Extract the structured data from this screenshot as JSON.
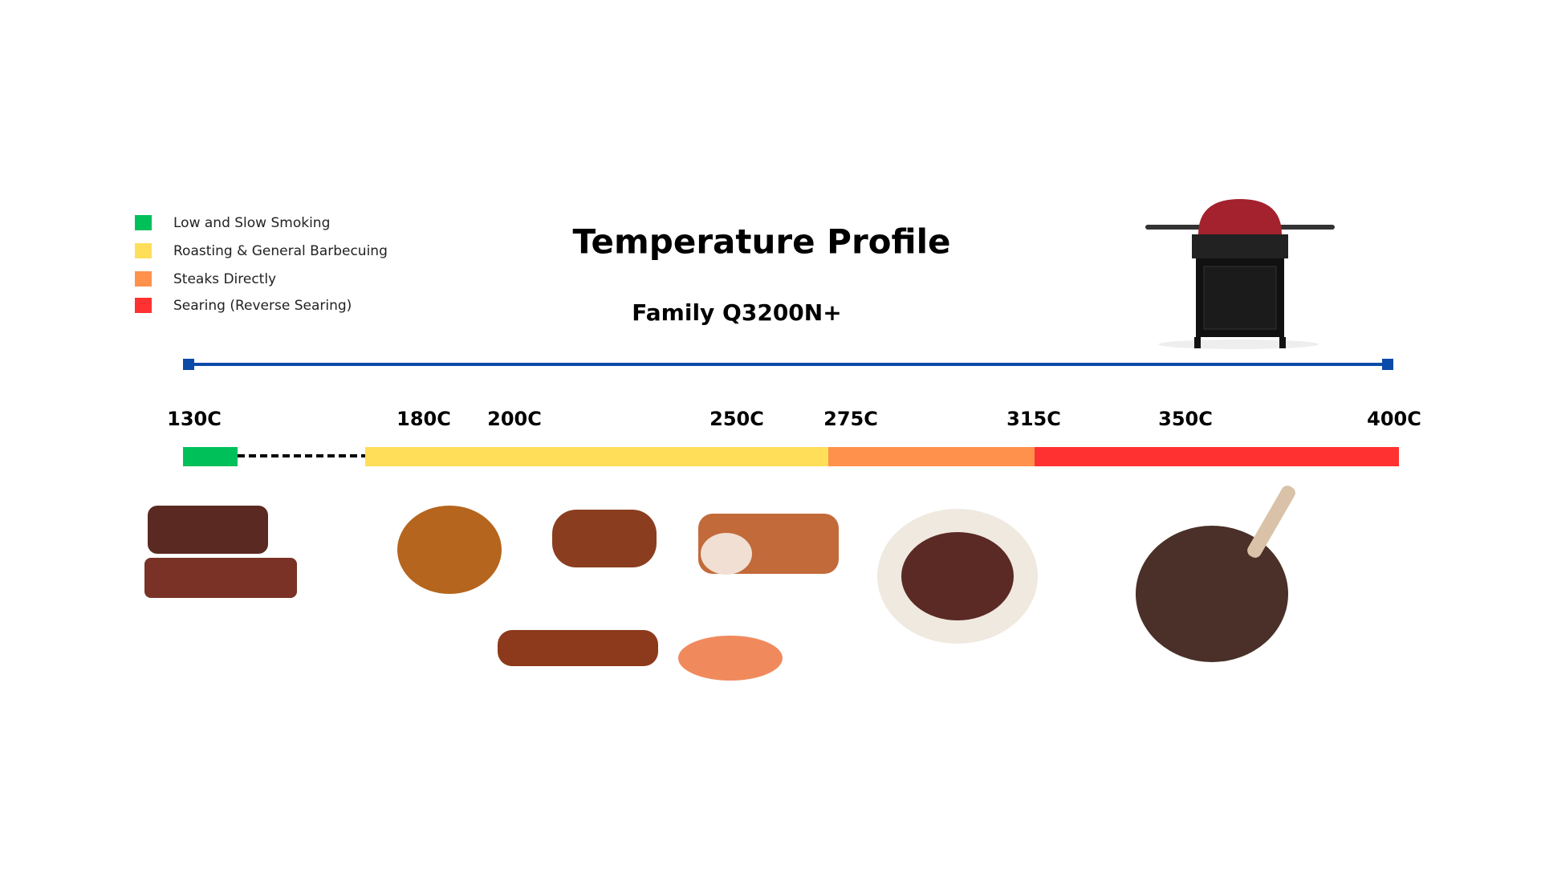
{
  "title": "Temperature Profile",
  "subtitle": "Family Q3200N+",
  "legend": [
    {
      "label": "Low and Slow Smoking",
      "color": "#00c05a"
    },
    {
      "label": "Roasting & General Barbecuing",
      "color": "#ffde59"
    },
    {
      "label": "Steaks Directly",
      "color": "#ff914d"
    },
    {
      "label": "Searing (Reverse Searing)",
      "color": "#ff3131"
    }
  ],
  "ticks": [
    "130C",
    "180C",
    "200C",
    "250C",
    "275C",
    "315C",
    "350C",
    "400C"
  ]
}
